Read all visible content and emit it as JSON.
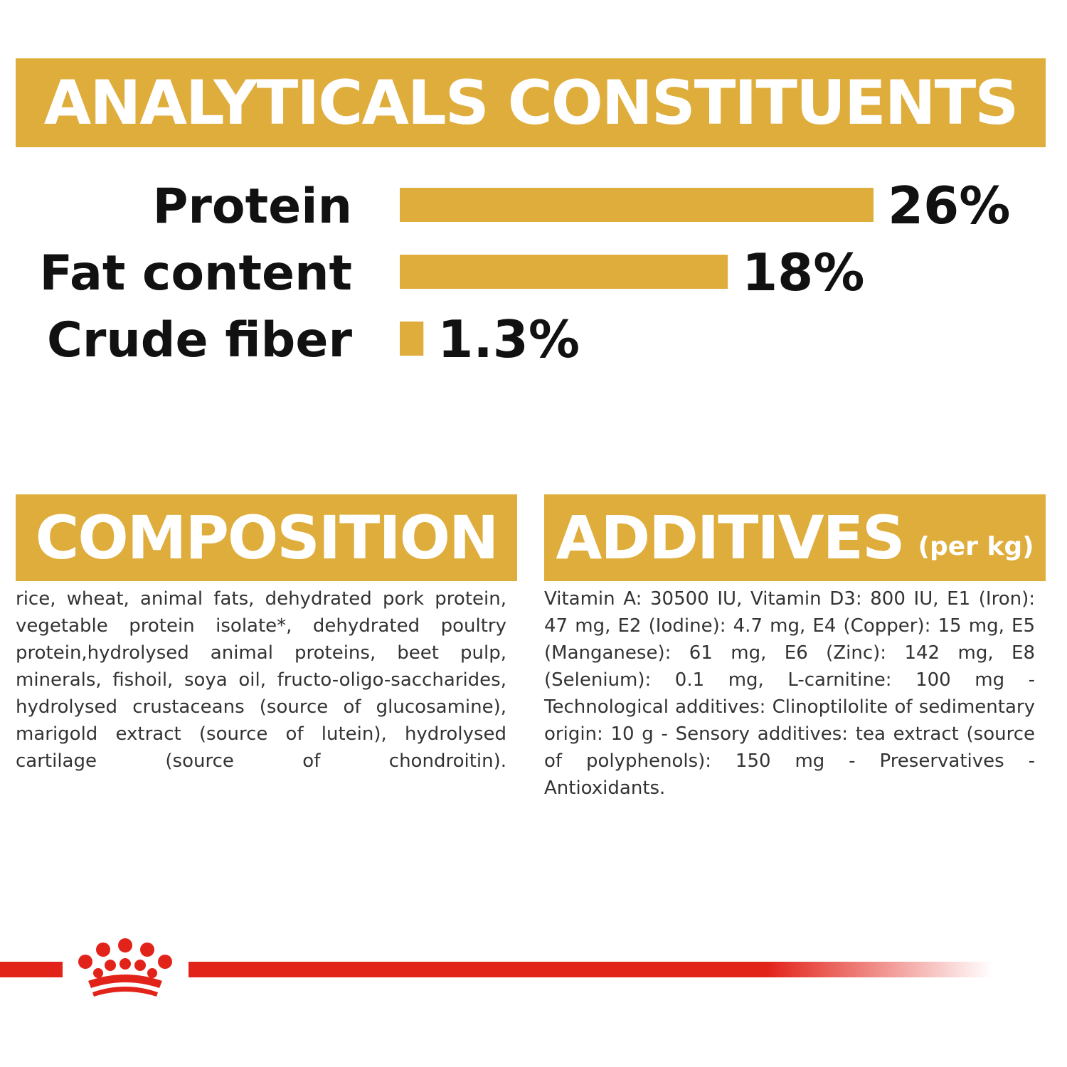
{
  "colors": {
    "accent": "#dfad3c",
    "banner_text": "#ffffff",
    "label_text": "#111111",
    "body_text": "#333333",
    "brand_red": "#e2231a"
  },
  "analyticals": {
    "title": "ANALYTICALS CONSTITUENTS"
  },
  "chart_data": {
    "type": "bar",
    "orientation": "horizontal",
    "categories": [
      "Protein",
      "Fat content",
      "Crude fiber"
    ],
    "values": [
      26,
      18,
      1.3
    ],
    "value_labels": [
      "26%",
      "18%",
      "1.3%"
    ],
    "unit": "%",
    "title": "ANALYTICALS CONSTITUENTS",
    "xlabel": "",
    "ylabel": "",
    "grid": false,
    "legend": "none",
    "bar_color": "#dfad3c"
  },
  "composition": {
    "title": "COMPOSITION",
    "text": "rice, wheat, animal fats, dehydrated pork protein, vegetable protein isolate*, dehydrated poultry protein,hydrolysed animal proteins, beet pulp, minerals, fishoil, soya oil, fructo-oligo-saccharides, hydrolysed crustaceans (source of glucosamine), marigold extract (source of lutein), hydrolysed cartilage (source of chondroitin)."
  },
  "additives": {
    "title": "ADDITIVES",
    "subtitle": "(per kg)",
    "text": "Vitamin A: 30500 IU, Vitamin D3: 800 IU, E1 (Iron): 47 mg, E2 (Iodine): 4.7 mg, E4 (Copper): 15 mg, E5 (Manganese): 61 mg, E6 (Zinc): 142 mg, E8 (Selenium): 0.1 mg, L-carnitine: 100 mg - Technological additives: Clinoptilolite of sedimentary origin: 10 g - Sensory additives: tea extract (source of polyphenols): 150 mg - Preservatives - Antioxidants."
  },
  "footer": {
    "logo_icon": "crown-icon"
  }
}
